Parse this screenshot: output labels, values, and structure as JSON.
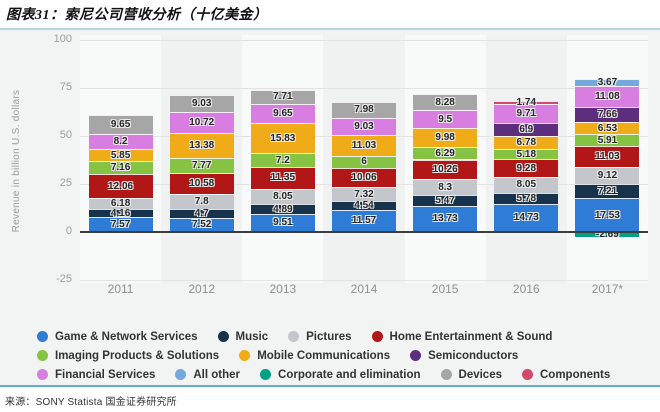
{
  "header": {
    "title": "图表31：索尼公司营收分析（十亿美金）"
  },
  "source": {
    "text": "来源：SONY Statista 国金证券研究所"
  },
  "chart_data": {
    "type": "bar",
    "stacked": true,
    "title": "索尼公司营收分析（十亿美金）",
    "ylabel": "Revenue in billion U.S. dollars",
    "ylim": [
      -25,
      100
    ],
    "yticks": [
      100,
      75,
      50,
      25,
      0,
      -25
    ],
    "grid": true,
    "legend_position": "bottom",
    "categories": [
      "2011",
      "2012",
      "2013",
      "2014",
      "2015",
      "2016",
      "2017*"
    ],
    "legend_rows": [
      [
        {
          "key": "game",
          "label": "Game & Network Services",
          "color": "#2e7cd6"
        },
        {
          "key": "music",
          "label": "Music",
          "color": "#17324b"
        },
        {
          "key": "pictures",
          "label": "Pictures",
          "color": "#c3c6ca"
        },
        {
          "key": "home",
          "label": "Home Entertainment & Sound",
          "color": "#b11717"
        }
      ],
      [
        {
          "key": "imaging",
          "label": "Imaging Products & Solutions",
          "color": "#86c343"
        },
        {
          "key": "mobile",
          "label": "Mobile Communications",
          "color": "#f0ac18"
        },
        {
          "key": "semi",
          "label": "Semiconductors",
          "color": "#5d2e7e"
        }
      ],
      [
        {
          "key": "financial",
          "label": "Financial Services",
          "color": "#d77ee0"
        },
        {
          "key": "allother",
          "label": "All other",
          "color": "#74a9de"
        },
        {
          "key": "corporate",
          "label": "Corporate and elimination",
          "color": "#00a182"
        },
        {
          "key": "devices",
          "label": "Devices",
          "color": "#a6a6a6"
        },
        {
          "key": "components",
          "label": "Components",
          "color": "#d04a6c"
        }
      ]
    ],
    "stacks": [
      {
        "category": "2011",
        "segments": [
          [
            "game",
            7.57
          ],
          [
            "music",
            4.16
          ],
          [
            "pictures",
            6.18
          ],
          [
            "home",
            12.06
          ],
          [
            "imaging",
            7.16
          ],
          [
            "mobile",
            5.85
          ],
          [
            "financial",
            8.2
          ],
          [
            "devices",
            9.65
          ]
        ]
      },
      {
        "category": "2012",
        "segments": [
          [
            "game",
            7.52
          ],
          [
            "music",
            4.7
          ],
          [
            "pictures",
            7.8
          ],
          [
            "home",
            10.58
          ],
          [
            "imaging",
            7.77
          ],
          [
            "mobile",
            13.38
          ],
          [
            "financial",
            10.72
          ],
          [
            "devices",
            9.03
          ]
        ]
      },
      {
        "category": "2013",
        "segments": [
          [
            "game",
            9.51
          ],
          [
            "music",
            4.89
          ],
          [
            "pictures",
            8.05
          ],
          [
            "home",
            11.35
          ],
          [
            "imaging",
            7.2
          ],
          [
            "mobile",
            15.83
          ],
          [
            "financial",
            9.65
          ],
          [
            "devices",
            7.71
          ]
        ]
      },
      {
        "category": "2014",
        "segments": [
          [
            "game",
            11.57
          ],
          [
            "music",
            4.54
          ],
          [
            "pictures",
            7.32
          ],
          [
            "home",
            10.06
          ],
          [
            "imaging",
            6
          ],
          [
            "mobile",
            11.03
          ],
          [
            "financial",
            9.03
          ],
          [
            "devices",
            7.98
          ]
        ]
      },
      {
        "category": "2015",
        "segments": [
          [
            "game",
            13.73
          ],
          [
            "music",
            5.47
          ],
          [
            "pictures",
            8.3
          ],
          [
            "home",
            10.26
          ],
          [
            "imaging",
            6.29
          ],
          [
            "mobile",
            9.98
          ],
          [
            "financial",
            9.5
          ],
          [
            "devices",
            8.28
          ]
        ]
      },
      {
        "category": "2016",
        "segments": [
          [
            "game",
            14.73
          ],
          [
            "music",
            5.78
          ],
          [
            "pictures",
            8.05
          ],
          [
            "home",
            9.28
          ],
          [
            "imaging",
            5.18
          ],
          [
            "mobile",
            6.78
          ],
          [
            "semi",
            6.9
          ],
          [
            "financial",
            9.71
          ],
          [
            "components",
            1.74
          ]
        ]
      },
      {
        "category": "2017*",
        "segments": [
          [
            "corporate",
            -2.69
          ],
          [
            "game",
            17.53
          ],
          [
            "music",
            7.21
          ],
          [
            "pictures",
            9.12
          ],
          [
            "home",
            11.03
          ],
          [
            "imaging",
            5.91
          ],
          [
            "mobile",
            6.53
          ],
          [
            "semi",
            7.66
          ],
          [
            "financial",
            11.08
          ],
          [
            "allother",
            3.67
          ]
        ]
      }
    ]
  }
}
